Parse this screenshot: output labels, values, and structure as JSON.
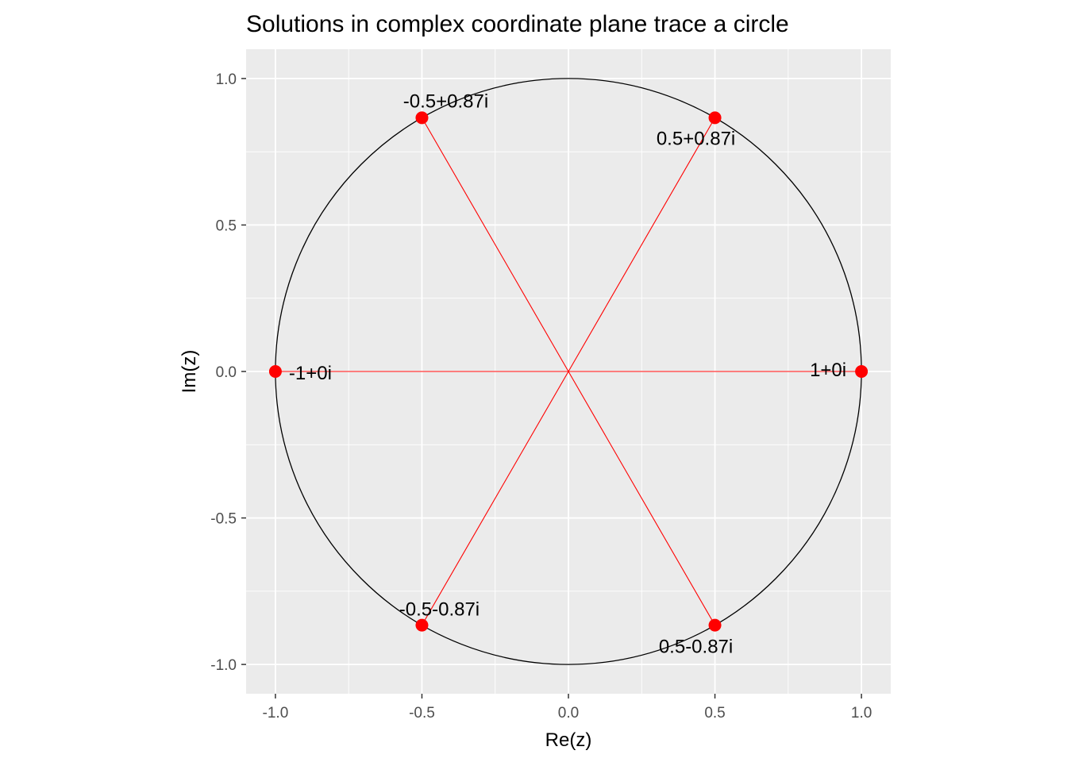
{
  "chart_data": {
    "type": "scatter",
    "title": "Solutions in complex coordinate plane trace a circle",
    "xlabel": "Re(z)",
    "ylabel": "Im(z)",
    "xlim": [
      -1.1,
      1.1
    ],
    "ylim": [
      -1.1,
      1.1
    ],
    "x_ticks": [
      -1.0,
      -0.5,
      0.0,
      0.5,
      1.0
    ],
    "x_tick_labels": [
      "-1.0",
      "-0.5",
      "0.0",
      "0.5",
      "1.0"
    ],
    "y_ticks": [
      -1.0,
      -0.5,
      0.0,
      0.5,
      1.0
    ],
    "y_tick_labels": [
      "-1.0",
      "-0.5",
      "0.0",
      "0.5",
      "1.0"
    ],
    "grid": true,
    "circle": {
      "center": [
        0,
        0
      ],
      "radius": 1,
      "color": "#000000"
    },
    "points": [
      {
        "re": 1.0,
        "im": 0.0,
        "label": "1+0i"
      },
      {
        "re": 0.5,
        "im": 0.866,
        "label": "0.5+0.87i"
      },
      {
        "re": -0.5,
        "im": 0.866,
        "label": "-0.5+0.87i"
      },
      {
        "re": -1.0,
        "im": 0.0,
        "label": "-1+0i"
      },
      {
        "re": -0.5,
        "im": -0.866,
        "label": "-0.5-0.87i"
      },
      {
        "re": 0.5,
        "im": -0.866,
        "label": "0.5-0.87i"
      }
    ],
    "segments_to_origin": true,
    "colors": {
      "points": "#ff0000",
      "segments": "#ff0000",
      "panel": "#ebebeb",
      "grid": "#ffffff",
      "circle": "#000000"
    }
  }
}
